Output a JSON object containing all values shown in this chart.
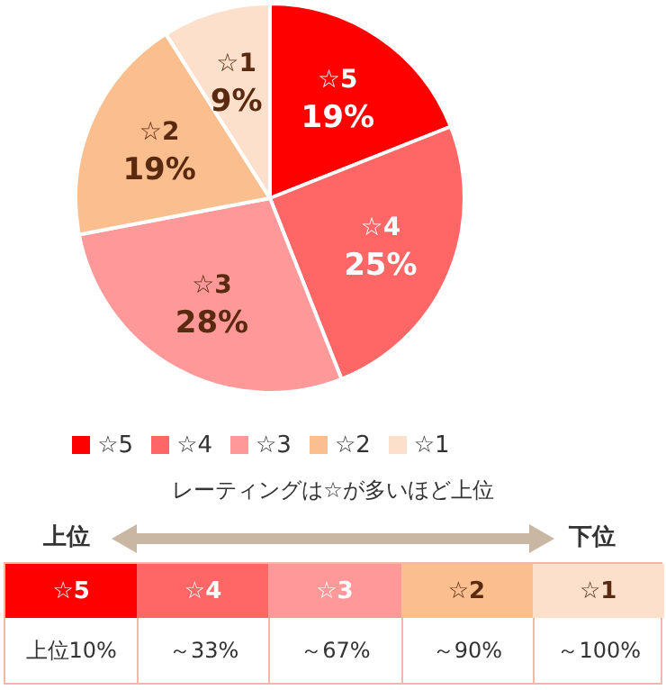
{
  "chart_data": {
    "type": "pie",
    "categories": [
      "☆5",
      "☆4",
      "☆3",
      "☆2",
      "☆1"
    ],
    "values": [
      19,
      25,
      28,
      19,
      9
    ],
    "value_labels": [
      "19%",
      "25%",
      "28%",
      "19%",
      "9%"
    ],
    "colors": [
      "#ff0000",
      "#ff6666",
      "#ff9999",
      "#fbbf8f",
      "#fde0cc"
    ],
    "legend": "bottom",
    "annotations": [
      "レーティングは☆が多いほど上位",
      "上位",
      "下位",
      "上位10%",
      "～33%",
      "～67%",
      "～90%",
      "～100%"
    ]
  }
}
